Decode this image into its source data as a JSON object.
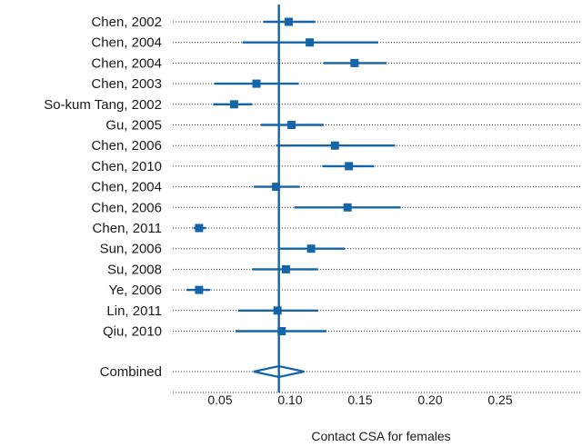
{
  "chart_data": {
    "type": "forest",
    "xlabel": "Contact CSA for females",
    "xlim": [
      0.0,
      0.3
    ],
    "xticks": [
      0.05,
      0.1,
      0.15,
      0.2,
      0.25
    ],
    "xtick_labels": [
      "0.05",
      "0.10",
      "0.15",
      "0.20",
      "0.25"
    ],
    "reference_value": 0.092,
    "accent_color": "#1565a8",
    "studies": [
      {
        "label": "Chen, 2002",
        "estimate": 0.099,
        "lower": 0.081,
        "upper": 0.118
      },
      {
        "label": "Chen, 2004",
        "estimate": 0.114,
        "lower": 0.066,
        "upper": 0.163
      },
      {
        "label": "Chen, 2004",
        "estimate": 0.146,
        "lower": 0.124,
        "upper": 0.169
      },
      {
        "label": "Chen, 2003",
        "estimate": 0.076,
        "lower": 0.046,
        "upper": 0.106
      },
      {
        "label": "So-kum Tang, 2002",
        "estimate": 0.06,
        "lower": 0.045,
        "upper": 0.073
      },
      {
        "label": "Gu, 2005",
        "estimate": 0.101,
        "lower": 0.079,
        "upper": 0.124
      },
      {
        "label": "Chen, 2006",
        "estimate": 0.132,
        "lower": 0.09,
        "upper": 0.175
      },
      {
        "label": "Chen, 2010",
        "estimate": 0.142,
        "lower": 0.123,
        "upper": 0.16
      },
      {
        "label": "Chen, 2004",
        "estimate": 0.09,
        "lower": 0.074,
        "upper": 0.107
      },
      {
        "label": "Chen, 2006",
        "estimate": 0.141,
        "lower": 0.103,
        "upper": 0.179
      },
      {
        "label": "Chen, 2011",
        "estimate": 0.035,
        "lower": 0.031,
        "upper": 0.04
      },
      {
        "label": "Sun, 2006",
        "estimate": 0.115,
        "lower": 0.092,
        "upper": 0.139
      },
      {
        "label": "Su, 2008",
        "estimate": 0.097,
        "lower": 0.073,
        "upper": 0.12
      },
      {
        "label": "Ye, 2006",
        "estimate": 0.035,
        "lower": 0.026,
        "upper": 0.043
      },
      {
        "label": "Lin, 2011",
        "estimate": 0.091,
        "lower": 0.063,
        "upper": 0.12
      },
      {
        "label": "Qiu, 2010",
        "estimate": 0.094,
        "lower": 0.061,
        "upper": 0.126
      }
    ],
    "combined": {
      "label": "Combined",
      "estimate": 0.092,
      "lower": 0.074,
      "upper": 0.11
    }
  }
}
